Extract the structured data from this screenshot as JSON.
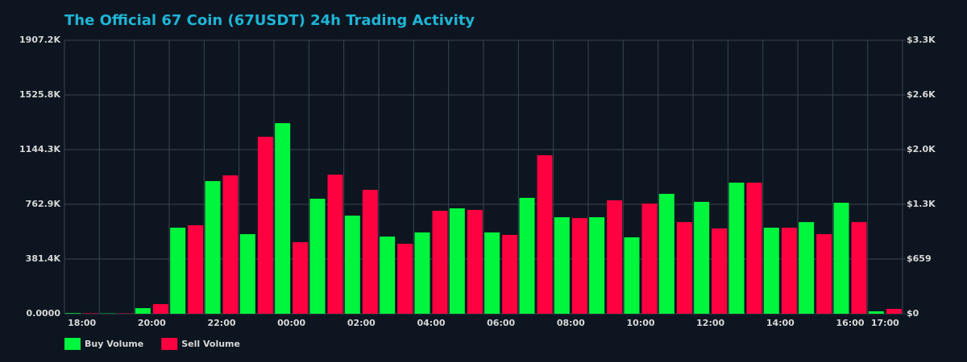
{
  "chart_data": {
    "type": "bar",
    "title": "The Official 67 Coin (67USDT) 24h Trading Activity",
    "categories": [
      "18:00",
      null,
      "20:00",
      null,
      "22:00",
      null,
      "00:00",
      null,
      "02:00",
      null,
      "04:00",
      null,
      "06:00",
      null,
      "08:00",
      null,
      "10:00",
      null,
      "12:00",
      null,
      "14:00",
      null,
      "16:00",
      "17:00"
    ],
    "series": [
      {
        "name": "Buy Volume",
        "color": "#00f53d",
        "values": [
          4000,
          2000,
          39000,
          600000,
          925000,
          555000,
          1329000,
          802000,
          684000,
          538000,
          567000,
          735000,
          567000,
          808000,
          673000,
          673000,
          533000,
          836000,
          780000,
          914000,
          600000,
          639000,
          774000,
          17000
        ]
      },
      {
        "name": "Sell Volume",
        "color": "#ff0040",
        "values": [
          3000,
          2000,
          67000,
          617000,
          965000,
          1234000,
          499000,
          970000,
          864000,
          488000,
          718000,
          724000,
          550000,
          1105000,
          667000,
          791000,
          768000,
          639000,
          595000,
          914000,
          600000,
          555000,
          639000,
          34000
        ]
      }
    ],
    "ylim": [
      0,
      1907200
    ],
    "yticks": [
      {
        "value": 0,
        "label": "0.0000"
      },
      {
        "value": 381440,
        "label": "381.4K"
      },
      {
        "value": 762880,
        "label": "762.9K"
      },
      {
        "value": 1144320,
        "label": "1144.3K"
      },
      {
        "value": 1525760,
        "label": "1525.8K"
      },
      {
        "value": 1907200,
        "label": "1907.2K"
      }
    ],
    "y2lim": [
      0,
      3295
    ],
    "y2ticks": [
      {
        "value": 0,
        "label": "$0"
      },
      {
        "value": 659,
        "label": "$659"
      },
      {
        "value": 1318,
        "label": "$1.3K"
      },
      {
        "value": 1977,
        "label": "$2.0K"
      },
      {
        "value": 2636,
        "label": "$2.6K"
      },
      {
        "value": 3295,
        "label": "$3.3K"
      }
    ],
    "grid": true,
    "legend": "bottom-left"
  }
}
